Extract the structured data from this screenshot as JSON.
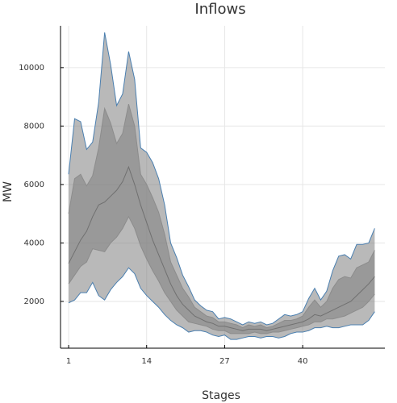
{
  "chart_data": {
    "type": "fan",
    "title": "Inflows",
    "x_label": "Stages",
    "y_label": "MW",
    "x": [
      1,
      2,
      3,
      4,
      5,
      6,
      7,
      8,
      9,
      10,
      11,
      12,
      13,
      14,
      15,
      16,
      17,
      18,
      19,
      20,
      21,
      22,
      23,
      24,
      25,
      26,
      27,
      28,
      29,
      30,
      31,
      32,
      33,
      34,
      35,
      36,
      37,
      38,
      39,
      40,
      41,
      42,
      43,
      44,
      45,
      46,
      47,
      48,
      49,
      50,
      51,
      52
    ],
    "series": [
      {
        "color": "#4a7fb0",
        "values": [
          1950,
          2050,
          2300,
          2300,
          2650,
          2200,
          2050,
          2400,
          2650,
          2850,
          3150,
          2950,
          2450,
          2200,
          2000,
          1800,
          1550,
          1350,
          1200,
          1100,
          950,
          1000,
          1000,
          950,
          850,
          800,
          850,
          700,
          700,
          750,
          800,
          800,
          750,
          800,
          800,
          750,
          800,
          900,
          950,
          950,
          1000,
          1100,
          1100,
          1150,
          1100,
          1100,
          1150,
          1200,
          1200,
          1200,
          1350,
          1650
        ]
      },
      {
        "color": "#8c8c8c",
        "values": [
          2600,
          2900,
          3200,
          3350,
          3800,
          3750,
          3700,
          4000,
          4200,
          4500,
          4900,
          4500,
          3900,
          3450,
          3050,
          2700,
          2300,
          2000,
          1700,
          1500,
          1300,
          1250,
          1200,
          1150,
          1050,
          1000,
          1000,
          900,
          900,
          900,
          900,
          950,
          900,
          900,
          950,
          950,
          1000,
          1050,
          1100,
          1150,
          1200,
          1300,
          1300,
          1400,
          1400,
          1450,
          1500,
          1600,
          1700,
          1800,
          2000,
          2250
        ]
      },
      {
        "color": "#707070",
        "values": [
          3300,
          3700,
          4100,
          4400,
          4900,
          5300,
          5400,
          5600,
          5800,
          6100,
          6600,
          6000,
          5300,
          4700,
          4100,
          3600,
          3100,
          2600,
          2200,
          1900,
          1700,
          1500,
          1400,
          1300,
          1250,
          1150,
          1150,
          1100,
          1050,
          1000,
          1050,
          1050,
          1050,
          1000,
          1050,
          1100,
          1150,
          1200,
          1250,
          1300,
          1400,
          1550,
          1500,
          1600,
          1700,
          1800,
          1900,
          2000,
          2200,
          2400,
          2600,
          2850
        ]
      },
      {
        "color": "#8c8c8c",
        "values": [
          5000,
          6200,
          6350,
          5950,
          6300,
          7250,
          8600,
          8100,
          7400,
          7750,
          8750,
          8000,
          6350,
          6000,
          5550,
          5050,
          4300,
          3350,
          2900,
          2450,
          2150,
          1800,
          1650,
          1500,
          1450,
          1300,
          1300,
          1250,
          1200,
          1100,
          1200,
          1150,
          1200,
          1100,
          1150,
          1250,
          1350,
          1350,
          1400,
          1500,
          1800,
          2050,
          1800,
          2000,
          2450,
          2750,
          2850,
          2800,
          3150,
          3250,
          3350,
          3750
        ]
      },
      {
        "color": "#4a7fb0",
        "values": [
          6350,
          8250,
          8150,
          7200,
          7450,
          8800,
          11200,
          10100,
          8700,
          9100,
          10550,
          9600,
          7250,
          7100,
          6750,
          6200,
          5300,
          4000,
          3500,
          2900,
          2500,
          2050,
          1850,
          1700,
          1650,
          1400,
          1450,
          1400,
          1300,
          1200,
          1300,
          1250,
          1300,
          1200,
          1250,
          1400,
          1550,
          1500,
          1550,
          1650,
          2100,
          2450,
          2050,
          2350,
          3050,
          3550,
          3600,
          3450,
          3950,
          3950,
          4000,
          4500
        ]
      }
    ],
    "band_color": "#808080",
    "xlim": [
      -0.35,
      53.7
    ],
    "ylim": [
      400,
      11430
    ],
    "xticks": [
      1,
      14,
      27,
      40
    ],
    "yticks": [
      2000,
      4000,
      6000,
      8000,
      10000
    ],
    "grid": true
  }
}
